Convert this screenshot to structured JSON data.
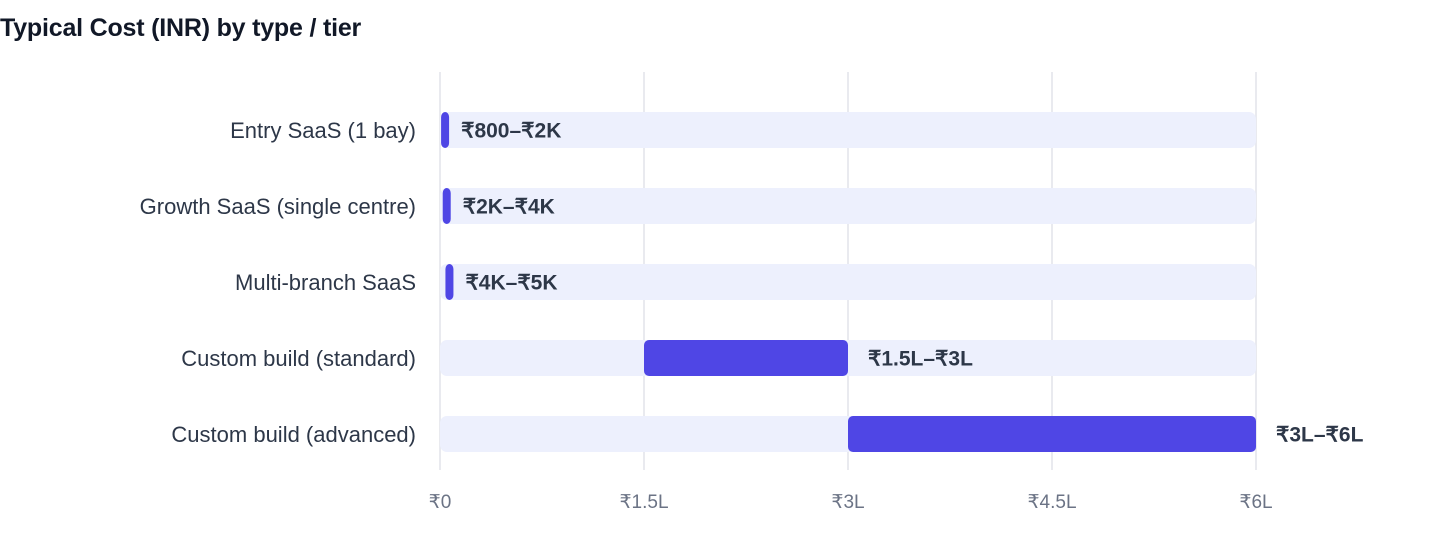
{
  "chart_data": {
    "type": "bar",
    "orientation": "horizontal",
    "variant": "range",
    "title": "Typical Cost (INR) by type / tier",
    "xlabel": "",
    "ylabel": "",
    "xlim": [
      0,
      600000
    ],
    "x_ticks": [
      {
        "value": 0,
        "label": "₹0"
      },
      {
        "value": 150000,
        "label": "₹1.5L"
      },
      {
        "value": 300000,
        "label": "₹3L"
      },
      {
        "value": 450000,
        "label": "₹4.5L"
      },
      {
        "value": 600000,
        "label": "₹6L"
      }
    ],
    "grid": true,
    "legend": "none",
    "categories": [
      "Entry SaaS (1 bay)",
      "Growth SaaS (single centre)",
      "Multi-branch SaaS",
      "Custom build (standard)",
      "Custom build (advanced)"
    ],
    "ranges": [
      {
        "low": 800,
        "high": 2000,
        "label": "₹800–₹2K"
      },
      {
        "low": 2000,
        "high": 4000,
        "label": "₹2K–₹4K"
      },
      {
        "low": 4000,
        "high": 5000,
        "label": "₹4K–₹5K"
      },
      {
        "low": 150000,
        "high": 300000,
        "label": "₹1.5L–₹3L"
      },
      {
        "low": 300000,
        "high": 600000,
        "label": "₹3L–₹6L"
      }
    ],
    "colors": {
      "bar": "#4f46e5",
      "track": "#edf0fd",
      "grid": "#e2e4ea"
    }
  }
}
